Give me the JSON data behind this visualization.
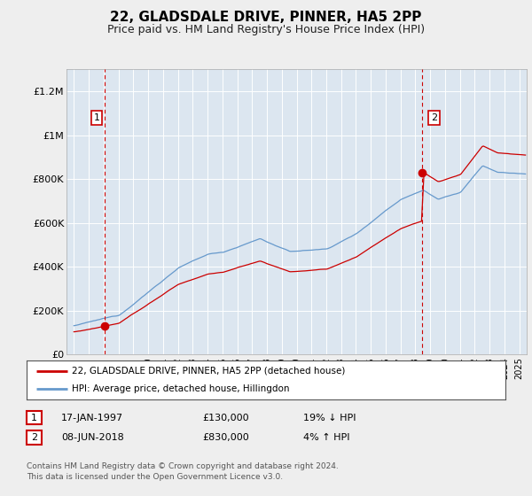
{
  "title": "22, GLADSDALE DRIVE, PINNER, HA5 2PP",
  "subtitle": "Price paid vs. HM Land Registry's House Price Index (HPI)",
  "title_fontsize": 11,
  "subtitle_fontsize": 9,
  "background_color": "#eeeeee",
  "plot_bg_color": "#dce6f0",
  "grid_color": "#ffffff",
  "ylabel_ticks": [
    "£0",
    "£200K",
    "£400K",
    "£600K",
    "£800K",
    "£1M",
    "£1.2M"
  ],
  "ytick_values": [
    0,
    200000,
    400000,
    600000,
    800000,
    1000000,
    1200000
  ],
  "ylim": [
    0,
    1300000
  ],
  "xlim_start": 1994.5,
  "xlim_end": 2025.5,
  "purchase1_x": 1997.04,
  "purchase1_y": 130000,
  "purchase2_x": 2018.44,
  "purchase2_y": 830000,
  "purchase_color": "#cc0000",
  "hpi_color": "#6699cc",
  "legend_label_red": "22, GLADSDALE DRIVE, PINNER, HA5 2PP (detached house)",
  "legend_label_blue": "HPI: Average price, detached house, Hillingdon",
  "annotation1_label": "1",
  "annotation2_label": "2",
  "table_row1": [
    "1",
    "17-JAN-1997",
    "£130,000",
    "19% ↓ HPI"
  ],
  "table_row2": [
    "2",
    "08-JUN-2018",
    "£830,000",
    "4% ↑ HPI"
  ],
  "footer": "Contains HM Land Registry data © Crown copyright and database right 2024.\nThis data is licensed under the Open Government Licence v3.0.",
  "xgrid_years": [
    1995,
    1996,
    1997,
    1998,
    1999,
    2000,
    2001,
    2002,
    2003,
    2004,
    2005,
    2006,
    2007,
    2008,
    2009,
    2010,
    2011,
    2012,
    2013,
    2014,
    2015,
    2016,
    2017,
    2018,
    2019,
    2020,
    2021,
    2022,
    2023,
    2024,
    2025
  ]
}
